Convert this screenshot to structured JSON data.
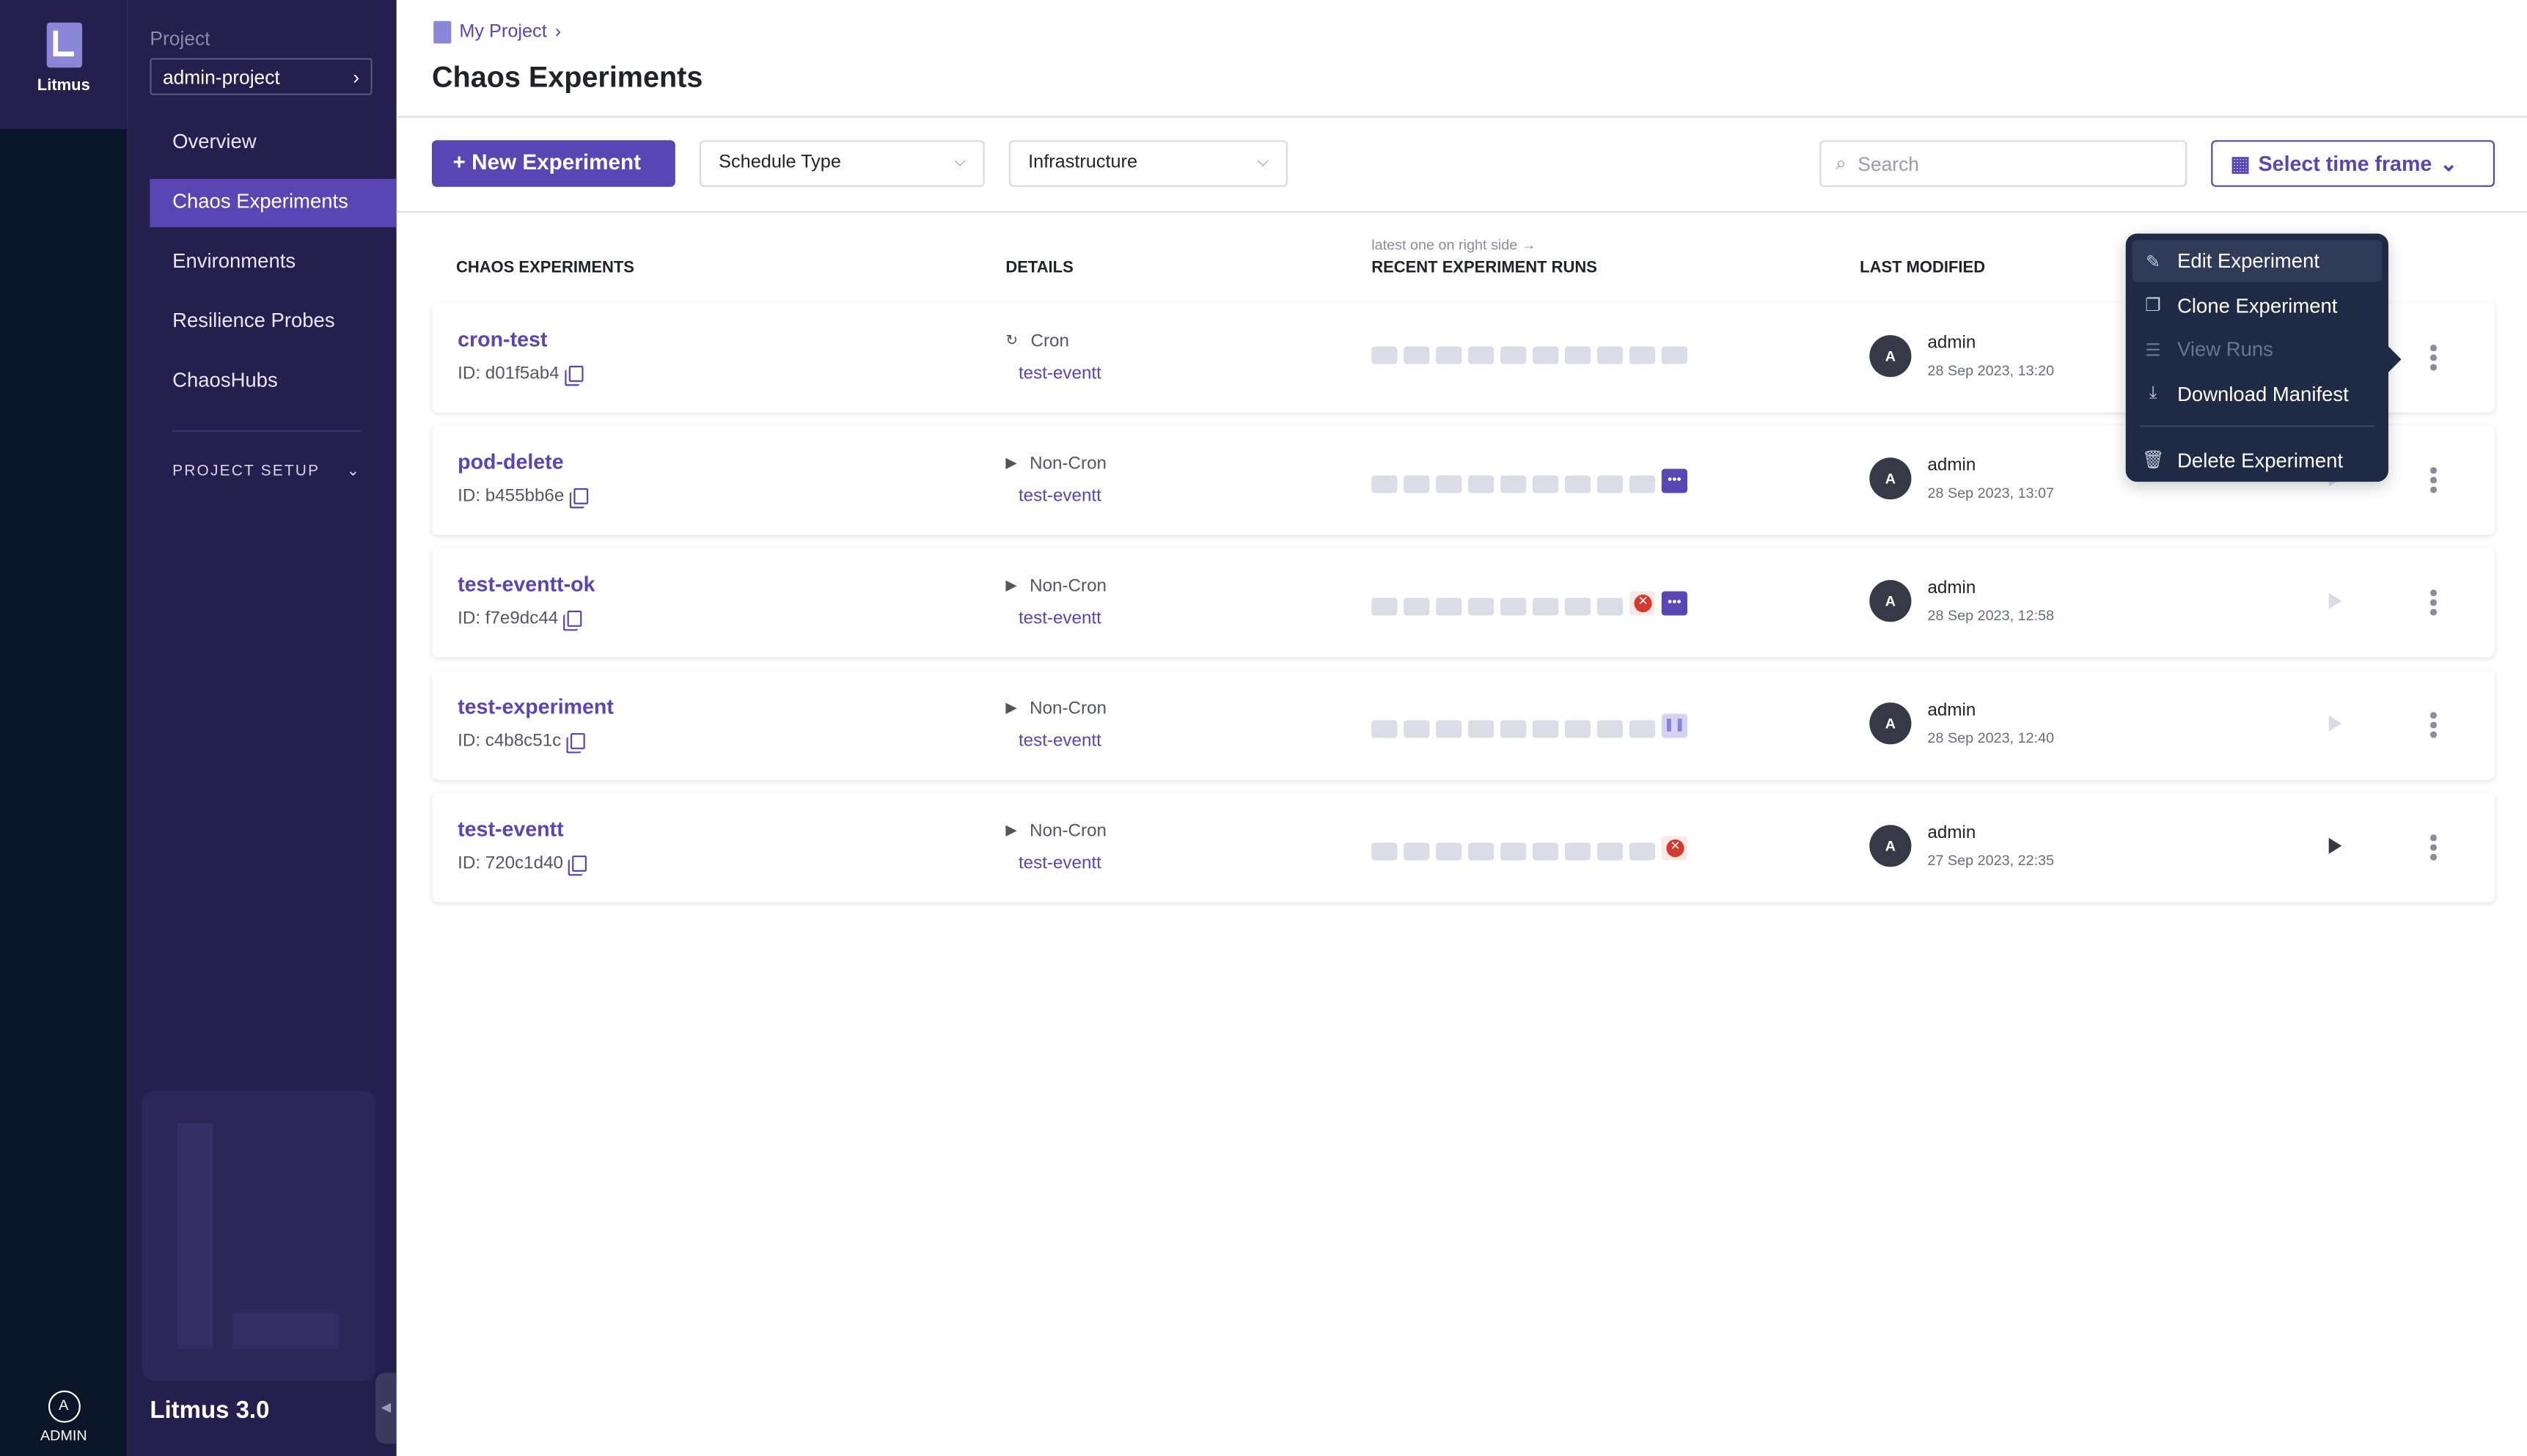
{
  "rail": {
    "app_name": "Litmus",
    "user_label": "ADMIN",
    "user_initial": "A"
  },
  "sidebar": {
    "project_label": "Project",
    "project_name": "admin-project",
    "items": [
      {
        "label": "Overview"
      },
      {
        "label": "Chaos Experiments",
        "active": true
      },
      {
        "label": "Environments"
      },
      {
        "label": "Resilience Probes"
      },
      {
        "label": "ChaosHubs"
      }
    ],
    "section": "PROJECT SETUP",
    "version": "Litmus 3.0"
  },
  "header": {
    "breadcrumb": "My Project",
    "title": "Chaos Experiments"
  },
  "toolbar": {
    "new_label": "New Experiment",
    "schedule_type": "Schedule Type",
    "infrastructure": "Infrastructure",
    "search_placeholder": "Search",
    "time_frame": "Select time frame"
  },
  "table": {
    "columns": [
      "CHAOS EXPERIMENTS",
      "DETAILS",
      "RECENT EXPERIMENT RUNS",
      "LAST MODIFIED"
    ],
    "runs_hint": "latest one on right side →",
    "rows": [
      {
        "name": "cron-test",
        "id": "ID: d01f5ab4",
        "schedule": "Cron",
        "schedule_icon": "refresh-icon",
        "infra": "test-eventt",
        "runs": [
          "empty",
          "empty",
          "empty",
          "empty",
          "empty",
          "empty",
          "empty",
          "empty",
          "empty",
          "empty"
        ],
        "user": "admin",
        "initial": "A",
        "date": "28 Sep 2023, 13:20",
        "play": "hidden"
      },
      {
        "name": "pod-delete",
        "id": "ID: b455bb6e",
        "schedule": "Non-Cron",
        "schedule_icon": "play-icon",
        "infra": "test-eventt",
        "runs": [
          "empty",
          "empty",
          "empty",
          "empty",
          "empty",
          "empty",
          "empty",
          "empty",
          "empty",
          "running"
        ],
        "user": "admin",
        "initial": "A",
        "date": "28 Sep 2023, 13:07",
        "play": "disabled"
      },
      {
        "name": "test-eventt-ok",
        "id": "ID: f7e9dc44",
        "schedule": "Non-Cron",
        "schedule_icon": "play-icon",
        "infra": "test-eventt",
        "runs": [
          "empty",
          "empty",
          "empty",
          "empty",
          "empty",
          "empty",
          "empty",
          "empty",
          "failed",
          "running"
        ],
        "user": "admin",
        "initial": "A",
        "date": "28 Sep 2023, 12:58",
        "play": "disabled"
      },
      {
        "name": "test-experiment",
        "id": "ID: c4b8c51c",
        "schedule": "Non-Cron",
        "schedule_icon": "play-icon",
        "infra": "test-eventt",
        "runs": [
          "empty",
          "empty",
          "empty",
          "empty",
          "empty",
          "empty",
          "empty",
          "empty",
          "empty",
          "paused"
        ],
        "user": "admin",
        "initial": "A",
        "date": "28 Sep 2023, 12:40",
        "play": "disabled"
      },
      {
        "name": "test-eventt",
        "id": "ID: 720c1d40",
        "schedule": "Non-Cron",
        "schedule_icon": "play-icon",
        "infra": "test-eventt",
        "runs": [
          "empty",
          "empty",
          "empty",
          "empty",
          "empty",
          "empty",
          "empty",
          "empty",
          "empty",
          "failed"
        ],
        "user": "admin",
        "initial": "A",
        "date": "27 Sep 2023, 22:35",
        "play": "enabled"
      }
    ]
  },
  "context_menu": {
    "items": [
      {
        "label": "Edit Experiment",
        "icon": "pencil-icon"
      },
      {
        "label": "Clone Experiment",
        "icon": "clone-icon"
      },
      {
        "label": "View Runs",
        "icon": "list-icon",
        "disabled": true
      },
      {
        "label": "Download Manifest",
        "icon": "download-icon"
      },
      {
        "label": "Delete Experiment",
        "icon": "trash-icon"
      }
    ]
  },
  "colors": {
    "accent": "#5746b4",
    "sidebar": "#241f4d",
    "rail": "#0b1628",
    "menu": "#1f2a44",
    "failed": "#d43b2c"
  }
}
